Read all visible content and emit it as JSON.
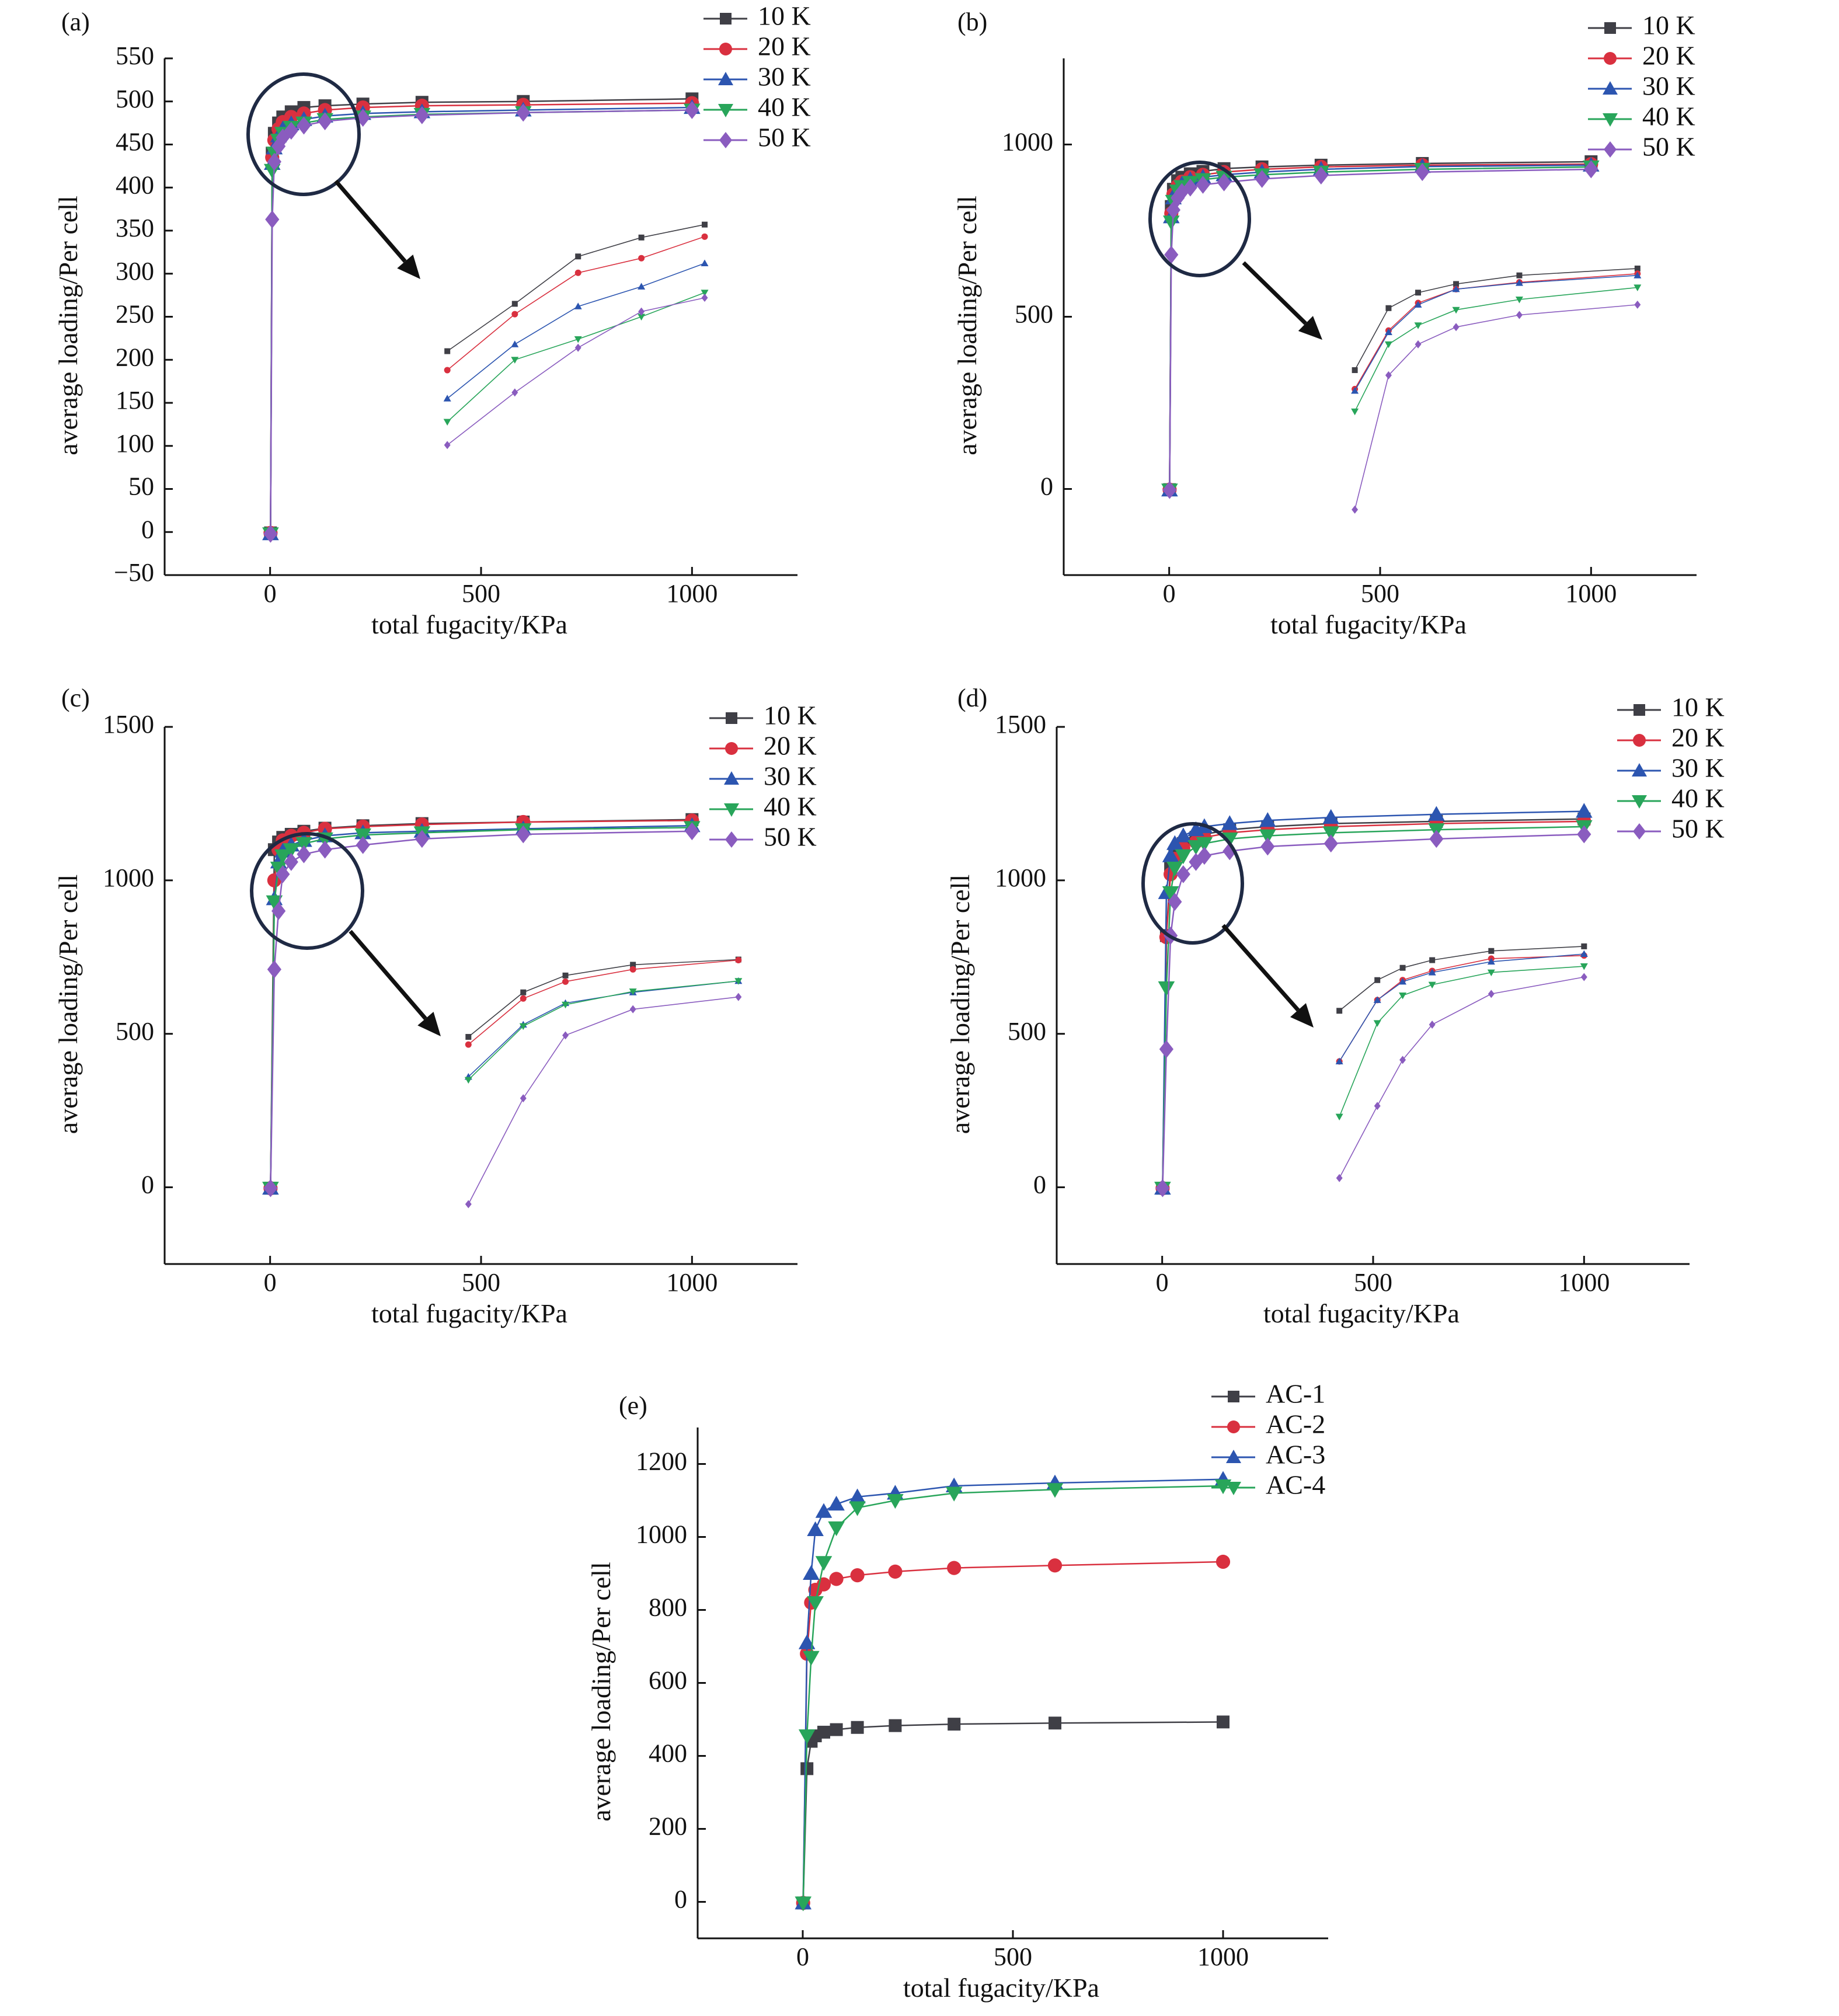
{
  "colors": {
    "s10": "#3f3f46",
    "s20": "#d9303f",
    "s30": "#2c55b0",
    "s40": "#28a55a",
    "s50": "#8a5cbf",
    "axis": "#111111",
    "highlight": "#1f2a44"
  },
  "chart_data": [
    {
      "panel": "(a)",
      "type": "line",
      "xlabel": "total fugacity/KPa",
      "ylabel": "average loading/Per cell",
      "xlim": [
        -250,
        1250
      ],
      "ylim": [
        -50,
        550
      ],
      "xticks": [
        "0",
        "500",
        "1000"
      ],
      "yticks": [
        "550",
        "500",
        "450",
        "400",
        "350",
        "300",
        "250",
        "200",
        "150",
        "100",
        "50",
        "0",
        "−50"
      ],
      "x": [
        1,
        5,
        10,
        20,
        30,
        50,
        80,
        130,
        220,
        360,
        600,
        1000
      ],
      "series": [
        {
          "name": "10 K",
          "marker": "square",
          "values": [
            -1,
            440,
            463,
            475,
            482,
            488,
            493,
            495,
            497,
            499,
            500,
            503
          ]
        },
        {
          "name": "20 K",
          "marker": "circle",
          "values": [
            -1,
            435,
            455,
            468,
            476,
            482,
            486,
            490,
            493,
            495,
            496,
            498
          ]
        },
        {
          "name": "30 K",
          "marker": "triangle",
          "values": [
            -2,
            428,
            446,
            460,
            468,
            474,
            479,
            483,
            486,
            488,
            490,
            493
          ]
        },
        {
          "name": "40 K",
          "marker": "tri-down",
          "values": [
            -2,
            420,
            440,
            455,
            463,
            470,
            475,
            479,
            482,
            485,
            487,
            490
          ]
        },
        {
          "name": "50 K",
          "marker": "diamond",
          "values": [
            -2,
            363,
            430,
            448,
            458,
            466,
            472,
            477,
            481,
            484,
            487,
            490
          ]
        }
      ],
      "inset": {
        "x": [
          420,
          580,
          730,
          880,
          1030
        ],
        "series": [
          {
            "values": [
              210,
              265,
              320,
              342,
              357
            ]
          },
          {
            "values": [
              188,
              253,
              301,
              318,
              343
            ]
          },
          {
            "values": [
              155,
              218,
              262,
              285,
              312
            ]
          },
          {
            "values": [
              128,
              200,
              224,
              250,
              278
            ]
          },
          {
            "values": [
              101,
              162,
              214,
              256,
              272
            ]
          }
        ]
      }
    },
    {
      "panel": "(b)",
      "type": "line",
      "xlabel": "total fugacity/KPa",
      "ylabel": "average loading/Per cell",
      "xlim": [
        -250,
        1250
      ],
      "ylim": [
        -250,
        1250
      ],
      "xticks": [
        "0",
        "500",
        "1000"
      ],
      "yticks": [
        "1000",
        "500",
        "0"
      ],
      "x": [
        1,
        5,
        10,
        20,
        30,
        50,
        80,
        130,
        220,
        360,
        600,
        1000
      ],
      "series": [
        {
          "name": "10 K",
          "marker": "square",
          "values": [
            -2,
            820,
            870,
            895,
            905,
            915,
            922,
            930,
            935,
            940,
            945,
            950
          ]
        },
        {
          "name": "20 K",
          "marker": "circle",
          "values": [
            -2,
            800,
            855,
            880,
            892,
            905,
            912,
            920,
            928,
            935,
            940,
            943
          ]
        },
        {
          "name": "30 K",
          "marker": "triangle",
          "values": [
            -3,
            790,
            845,
            872,
            885,
            898,
            905,
            912,
            920,
            928,
            936,
            940
          ]
        },
        {
          "name": "40 K",
          "marker": "tri-down",
          "values": [
            -3,
            775,
            835,
            865,
            878,
            890,
            898,
            905,
            912,
            920,
            928,
            935
          ]
        },
        {
          "name": "50 K",
          "marker": "diamond",
          "values": [
            -3,
            680,
            810,
            845,
            862,
            875,
            883,
            890,
            900,
            910,
            920,
            928
          ]
        }
      ],
      "inset": {
        "x": [
          440,
          520,
          590,
          680,
          830,
          1110
        ],
        "series": [
          {
            "values": [
              345,
              525,
              570,
              595,
              620,
              640
            ]
          },
          {
            "values": [
              290,
              460,
              540,
              580,
              600,
              625
            ]
          },
          {
            "values": [
              285,
              455,
              535,
              580,
              598,
              620
            ]
          },
          {
            "values": [
              225,
              420,
              475,
              520,
              550,
              585
            ]
          },
          {
            "values": [
              -60,
              330,
              420,
              470,
              505,
              535
            ]
          }
        ]
      }
    },
    {
      "panel": "(c)",
      "type": "line",
      "xlabel": "total fugacity/KPa",
      "ylabel": "average loading/Per cell",
      "xlim": [
        -250,
        1250
      ],
      "ylim": [
        -250,
        1500
      ],
      "xticks": [
        "0",
        "500",
        "1000"
      ],
      "yticks": [
        "1500",
        "1000",
        "500",
        "0"
      ],
      "x": [
        1,
        10,
        20,
        30,
        50,
        80,
        130,
        220,
        360,
        600,
        1000
      ],
      "series": [
        {
          "name": "10 K",
          "marker": "square",
          "values": [
            -3,
            1100,
            1125,
            1140,
            1150,
            1160,
            1170,
            1178,
            1185,
            1190,
            1198
          ]
        },
        {
          "name": "20 K",
          "marker": "circle",
          "values": [
            -3,
            1000,
            1100,
            1130,
            1145,
            1155,
            1168,
            1175,
            1182,
            1190,
            1195
          ]
        },
        {
          "name": "30 K",
          "marker": "triangle",
          "values": [
            -3,
            940,
            1060,
            1095,
            1115,
            1130,
            1145,
            1155,
            1160,
            1168,
            1178
          ]
        },
        {
          "name": "40 K",
          "marker": "tri-down",
          "values": [
            -3,
            930,
            1040,
            1080,
            1100,
            1120,
            1135,
            1148,
            1155,
            1165,
            1172
          ]
        },
        {
          "name": "50 K",
          "marker": "diamond",
          "values": [
            -3,
            710,
            900,
            1020,
            1060,
            1085,
            1100,
            1115,
            1135,
            1150,
            1160
          ]
        }
      ],
      "inset": {
        "x": [
          470,
          600,
          700,
          860,
          1110
        ],
        "series": [
          {
            "values": [
              490,
              635,
              690,
              725,
              742
            ]
          },
          {
            "values": [
              465,
              615,
              670,
              710,
              740
            ]
          },
          {
            "values": [
              360,
              530,
              600,
              635,
              672
            ]
          },
          {
            "values": [
              350,
              525,
              595,
              638,
              672
            ]
          },
          {
            "values": [
              -55,
              290,
              495,
              580,
              620
            ]
          }
        ]
      }
    },
    {
      "panel": "(d)",
      "type": "line",
      "xlabel": "total fugacity/KPa",
      "ylabel": "average loading/Per cell",
      "xlim": [
        -250,
        1250
      ],
      "ylim": [
        -250,
        1500
      ],
      "xticks": [
        "0",
        "500",
        "1000"
      ],
      "yticks": [
        "1500",
        "1000",
        "500",
        "0"
      ],
      "x": [
        1,
        10,
        20,
        30,
        50,
        80,
        100,
        160,
        250,
        400,
        650,
        1000
      ],
      "series": [
        {
          "name": "10 K",
          "marker": "square",
          "values": [
            -3,
            820,
            1050,
            1090,
            1120,
            1140,
            1150,
            1165,
            1175,
            1185,
            1192,
            1200
          ]
        },
        {
          "name": "20 K",
          "marker": "circle",
          "values": [
            -3,
            815,
            1020,
            1070,
            1105,
            1125,
            1140,
            1155,
            1165,
            1175,
            1185,
            1192
          ]
        },
        {
          "name": "30 K",
          "marker": "triangle",
          "values": [
            -3,
            960,
            1080,
            1120,
            1145,
            1165,
            1175,
            1185,
            1195,
            1205,
            1215,
            1225
          ]
        },
        {
          "name": "40 K",
          "marker": "tri-down",
          "values": [
            -3,
            650,
            960,
            1040,
            1080,
            1110,
            1120,
            1135,
            1145,
            1155,
            1165,
            1175
          ]
        },
        {
          "name": "50 K",
          "marker": "diamond",
          "values": [
            -3,
            450,
            820,
            930,
            1020,
            1060,
            1080,
            1095,
            1110,
            1120,
            1135,
            1150
          ]
        }
      ],
      "inset": {
        "x": [
          420,
          510,
          570,
          640,
          780,
          1000
        ],
        "series": [
          {
            "values": [
              575,
              675,
              715,
              740,
              770,
              785
            ]
          },
          {
            "values": [
              410,
              610,
              675,
              705,
              745,
              755
            ]
          },
          {
            "values": [
              410,
              610,
              670,
              700,
              735,
              760
            ]
          },
          {
            "values": [
              230,
              535,
              625,
              660,
              700,
              720
            ]
          },
          {
            "values": [
              30,
              265,
              415,
              530,
              630,
              685
            ]
          }
        ]
      }
    },
    {
      "panel": "(e)",
      "type": "line",
      "xlabel": "total fugacity/KPa",
      "ylabel": "average loading/Per cell",
      "xlim": [
        -250,
        1250
      ],
      "ylim": [
        -100,
        1300
      ],
      "xticks": [
        "0",
        "500",
        "1000"
      ],
      "yticks": [
        "1200",
        "1000",
        "800",
        "600",
        "400",
        "200",
        "0"
      ],
      "x": [
        1,
        10,
        20,
        30,
        50,
        80,
        130,
        220,
        360,
        600,
        1000
      ],
      "series": [
        {
          "name": "AC-1",
          "marker": "square",
          "values": [
            -3,
            365,
            440,
            455,
            465,
            472,
            478,
            483,
            487,
            490,
            493
          ]
        },
        {
          "name": "AC-2",
          "marker": "circle",
          "values": [
            -3,
            680,
            820,
            855,
            870,
            885,
            895,
            905,
            915,
            922,
            932
          ]
        },
        {
          "name": "AC-3",
          "marker": "triangle",
          "values": [
            -3,
            710,
            900,
            1020,
            1070,
            1090,
            1110,
            1120,
            1140,
            1148,
            1158
          ]
        },
        {
          "name": "AC-4",
          "marker": "tri-down",
          "values": [
            -3,
            455,
            670,
            820,
            930,
            1025,
            1080,
            1100,
            1120,
            1130,
            1140
          ]
        }
      ]
    }
  ]
}
